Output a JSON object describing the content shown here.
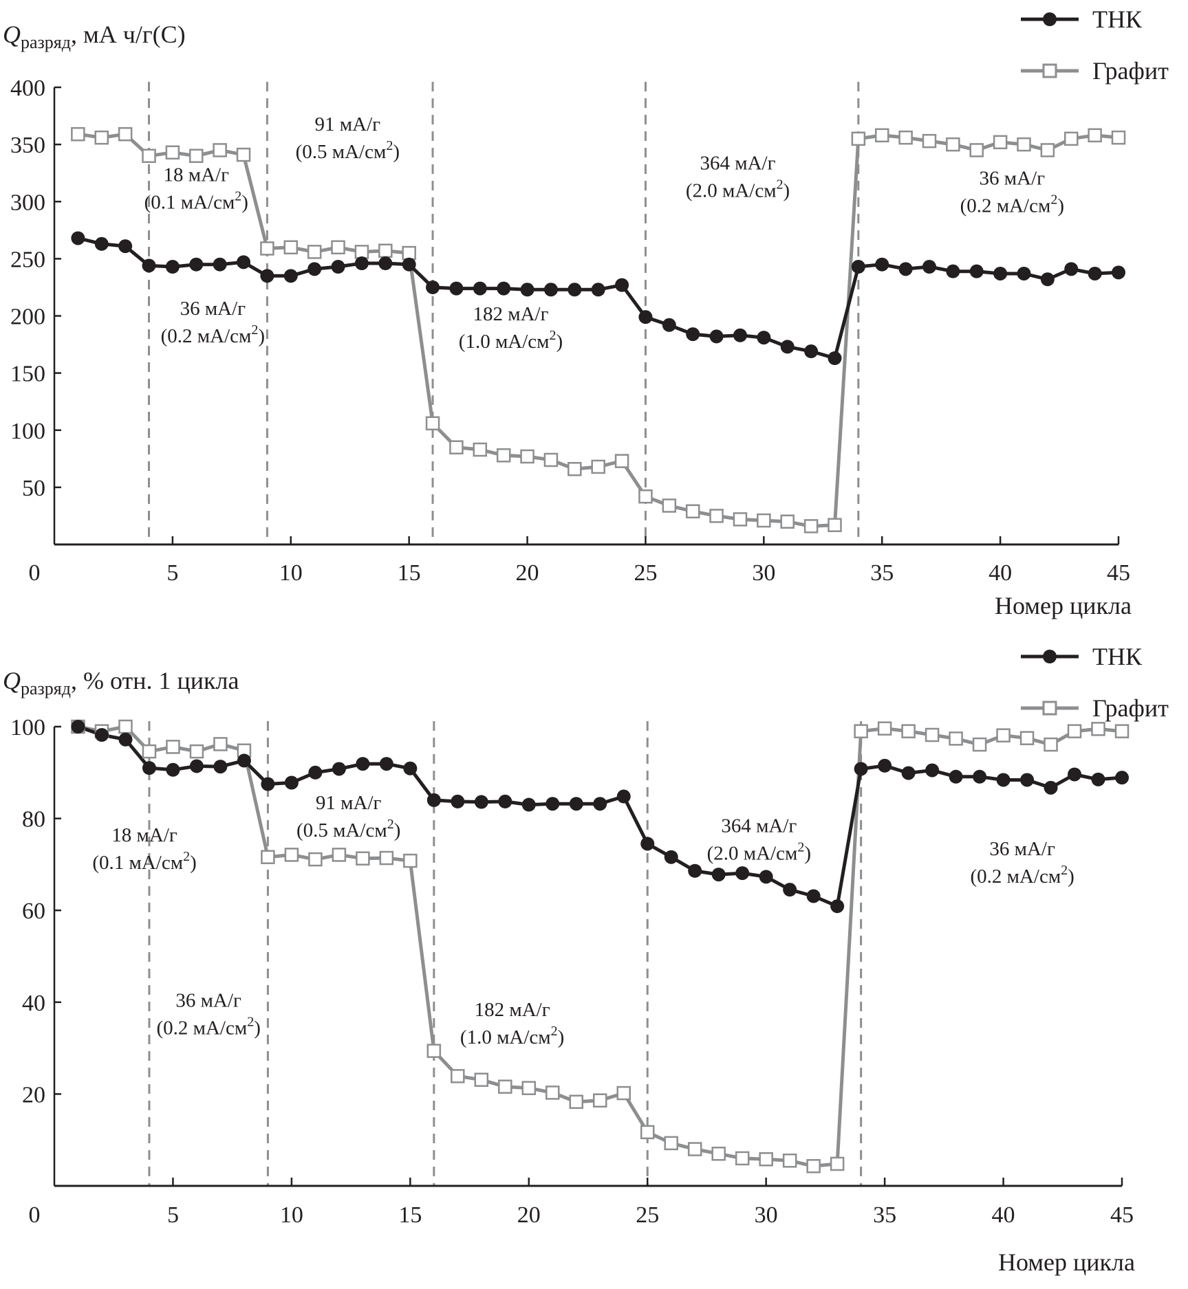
{
  "chart_data": [
    {
      "type": "line",
      "title": "",
      "ylabel_main": "Q",
      "ylabel_sub": "разряд",
      "ylabel_unit": ", мА ч/г(С)",
      "xlabel": "Номер цикла",
      "xlim": [
        0,
        45
      ],
      "ylim": [
        0,
        400
      ],
      "xticks": [
        0,
        5,
        10,
        15,
        20,
        25,
        30,
        35,
        40,
        45
      ],
      "yticks": [
        50,
        100,
        150,
        200,
        250,
        300,
        350,
        400
      ],
      "ytick_labels": [
        "50",
        "100",
        "150",
        "200",
        "250",
        "300",
        "350",
        "400"
      ],
      "xtick_labels": [
        "0",
        "5",
        "10",
        "15",
        "20",
        "25",
        "30",
        "35",
        "40",
        "45"
      ],
      "ytick_zero_label": "0",
      "grid": false,
      "legend_position": "top-right",
      "dividers": [
        4,
        9,
        16,
        25,
        34
      ],
      "annotations": [
        {
          "line1": "18 мА/г",
          "line2": "(0.1 мА/см",
          "sup": "2",
          "close": ")",
          "x": 6.0,
          "y": 318
        },
        {
          "line1": "36 мА/г",
          "line2": "(0.2 мА/см",
          "sup": "2",
          "close": ")",
          "x": 6.7,
          "y": 201
        },
        {
          "line1": "91 мА/г",
          "line2": "(0.5 мА/см",
          "sup": "2",
          "close": ")",
          "x": 12.4,
          "y": 362
        },
        {
          "line1": "182 мА/г",
          "line2": "(1.0 мА/см",
          "sup": "2",
          "close": ")",
          "x": 19.3,
          "y": 196
        },
        {
          "line1": "364 мА/г",
          "line2": "(2.0 мА/см",
          "sup": "2",
          "close": ")",
          "x": 28.9,
          "y": 328
        },
        {
          "line1": "36 мА/г",
          "line2": "(0.2 мА/см",
          "sup": "2",
          "close": ")",
          "x": 40.5,
          "y": 315
        }
      ],
      "x": [
        1,
        2,
        3,
        4,
        5,
        6,
        7,
        8,
        9,
        10,
        11,
        12,
        13,
        14,
        15,
        16,
        17,
        18,
        19,
        20,
        21,
        22,
        23,
        24,
        25,
        26,
        27,
        28,
        29,
        30,
        31,
        32,
        33,
        34,
        35,
        36,
        37,
        38,
        39,
        40,
        41,
        42,
        43,
        44,
        45
      ],
      "series": [
        {
          "name": "ТНК",
          "color": "#231f20",
          "marker": "filled-circle",
          "values": [
            268,
            263,
            261,
            244,
            243,
            245,
            245,
            247,
            235,
            235,
            241,
            243,
            246,
            246,
            245,
            225,
            224,
            224,
            224,
            223,
            223,
            223,
            223,
            227,
            199,
            192,
            184,
            182,
            183,
            181,
            173,
            169,
            163,
            243,
            245,
            241,
            243,
            239,
            239,
            237,
            237,
            232,
            241,
            237,
            238
          ]
        },
        {
          "name": "Графит",
          "color": "#8d8e90",
          "marker": "open-square",
          "values": [
            359,
            356,
            359,
            340,
            343,
            340,
            345,
            341,
            259,
            260,
            256,
            260,
            256,
            257,
            255,
            106,
            85,
            83,
            78,
            77,
            74,
            66,
            68,
            73,
            42,
            34,
            29,
            25,
            22,
            21,
            20,
            16,
            17,
            355,
            358,
            356,
            353,
            350,
            345,
            352,
            350,
            345,
            355,
            358,
            356
          ]
        }
      ]
    },
    {
      "type": "line",
      "title": "",
      "ylabel_main": "Q",
      "ylabel_sub": "разряд",
      "ylabel_unit": ", % отн. 1 цикла",
      "xlabel": "Номер цикла",
      "xlim": [
        0,
        45
      ],
      "ylim": [
        0,
        100
      ],
      "xticks": [
        0,
        5,
        10,
        15,
        20,
        25,
        30,
        35,
        40,
        45
      ],
      "yticks": [
        20,
        40,
        60,
        80,
        100
      ],
      "ytick_labels": [
        "20",
        "40",
        "60",
        "80",
        "100"
      ],
      "xtick_labels": [
        "0",
        "5",
        "10",
        "15",
        "20",
        "25",
        "30",
        "35",
        "40",
        "45"
      ],
      "ytick_zero_label": "0",
      "grid": false,
      "legend_position": "top-right",
      "dividers": [
        4,
        9,
        16,
        25,
        34
      ],
      "annotations": [
        {
          "line1": "18 мА/г",
          "line2": "(0.1 мА/см",
          "sup": "2",
          "close": ")",
          "x": 3.8,
          "y": 75
        },
        {
          "line1": "36 мА/г",
          "line2": "(0.2 мА/см",
          "sup": "2",
          "close": ")",
          "x": 6.5,
          "y": 39
        },
        {
          "line1": "91 мА/г",
          "line2": "(0.5 мА/см",
          "sup": "2",
          "close": ")",
          "x": 12.4,
          "y": 82
        },
        {
          "line1": "182 мА/г",
          "line2": "(1.0 мА/см",
          "sup": "2",
          "close": ")",
          "x": 19.3,
          "y": 37
        },
        {
          "line1": "364 мА/г",
          "line2": "(2.0 мА/см",
          "sup": "2",
          "close": ")",
          "x": 29.7,
          "y": 77
        },
        {
          "line1": "36 мА/г",
          "line2": "(0.2 мА/см",
          "sup": "2",
          "close": ")",
          "x": 40.8,
          "y": 72
        }
      ],
      "x": [
        1,
        2,
        3,
        4,
        5,
        6,
        7,
        8,
        9,
        10,
        11,
        12,
        13,
        14,
        15,
        16,
        17,
        18,
        19,
        20,
        21,
        22,
        23,
        24,
        25,
        26,
        27,
        28,
        29,
        30,
        31,
        32,
        33,
        34,
        35,
        36,
        37,
        38,
        39,
        40,
        41,
        42,
        43,
        44,
        45
      ],
      "series": [
        {
          "name": "ТНК",
          "color": "#231f20",
          "marker": "filled-circle",
          "values": [
            100,
            98.2,
            97.2,
            91,
            90.6,
            91.4,
            91.3,
            92.6,
            87.5,
            87.8,
            90,
            90.8,
            91.9,
            91.9,
            90.9,
            84,
            83.7,
            83.6,
            83.7,
            83,
            83.2,
            83.2,
            83.2,
            84.8,
            74.5,
            71.6,
            68.6,
            67.8,
            68.1,
            67.3,
            64.5,
            63.1,
            60.9,
            90.8,
            91.5,
            89.9,
            90.5,
            89.1,
            89.1,
            88.4,
            88.4,
            86.7,
            89.6,
            88.5,
            88.9
          ]
        },
        {
          "name": "Графит",
          "color": "#8d8e90",
          "marker": "open-square",
          "values": [
            100,
            99,
            100,
            94.6,
            95.6,
            94.6,
            96.2,
            94.8,
            71.6,
            72.1,
            71.1,
            72.1,
            71.3,
            71.4,
            70.8,
            29.4,
            23.9,
            23.1,
            21.6,
            21.3,
            20.3,
            18.3,
            18.6,
            20.2,
            11.7,
            9.3,
            8,
            7,
            6,
            5.8,
            5.5,
            4.3,
            4.8,
            99,
            99.6,
            99,
            98.2,
            97.4,
            96.1,
            98.1,
            97.5,
            96.1,
            99,
            99.5,
            99
          ]
        }
      ]
    }
  ]
}
